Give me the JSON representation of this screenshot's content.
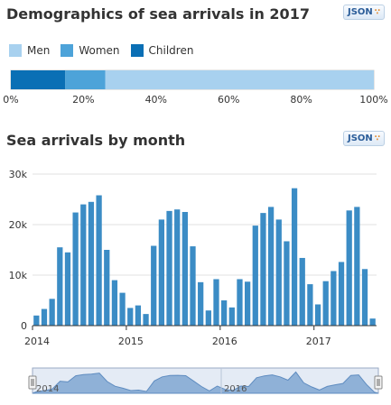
{
  "section1": {
    "title": "Demographics of sea arrivals in 2017",
    "json_label": "JSON"
  },
  "section2": {
    "title": "Sea arrivals by month",
    "json_label": "JSON"
  },
  "colors": {
    "men": "#a8d1ef",
    "women": "#4da3d9",
    "children": "#0a6fb5",
    "bar": "#3b8cc5",
    "navigator_fill": "#8fb1d7",
    "navigator_bg": "#e4ebf5"
  },
  "chart_data": [
    {
      "type": "bar",
      "orientation": "horizontal-stacked",
      "title": "Demographics of sea arrivals in 2017",
      "series": [
        {
          "name": "Children",
          "value": 15
        },
        {
          "name": "Women",
          "value": 11
        },
        {
          "name": "Men",
          "value": 74
        }
      ],
      "legend_order": [
        "Men",
        "Women",
        "Children"
      ],
      "xlim": [
        0,
        100
      ],
      "xticks": [
        "0%",
        "20%",
        "40%",
        "60%",
        "80%",
        "100%"
      ],
      "legend_position": "top-left"
    },
    {
      "type": "bar",
      "title": "Sea arrivals by month",
      "ylim": [
        0,
        30000
      ],
      "yticks": [
        0,
        10000,
        20000,
        30000
      ],
      "ytick_labels": [
        "0",
        "10k",
        "20k",
        "30k"
      ],
      "xticks": [
        "2014",
        "2015",
        "2016",
        "2017"
      ],
      "grid": true,
      "x": [
        "2014-01",
        "2014-02",
        "2014-03",
        "2014-04",
        "2014-05",
        "2014-06",
        "2014-07",
        "2014-08",
        "2014-09",
        "2014-10",
        "2014-11",
        "2014-12",
        "2015-01",
        "2015-02",
        "2015-03",
        "2015-04",
        "2015-05",
        "2015-06",
        "2015-07",
        "2015-08",
        "2015-09",
        "2015-10",
        "2015-11",
        "2015-12",
        "2016-01",
        "2016-02",
        "2016-03",
        "2016-04",
        "2016-05",
        "2016-06",
        "2016-07",
        "2016-08",
        "2016-09",
        "2016-10",
        "2016-11",
        "2016-12",
        "2017-01",
        "2017-02",
        "2017-03",
        "2017-04",
        "2017-05",
        "2017-06",
        "2017-07",
        "2017-08"
      ],
      "values": [
        2000,
        3300,
        5300,
        15500,
        14500,
        22400,
        24000,
        24500,
        25800,
        15000,
        9000,
        6500,
        3500,
        4000,
        2300,
        15800,
        21000,
        22700,
        23000,
        22500,
        15700,
        8600,
        3000,
        9200,
        5000,
        3600,
        9200,
        8700,
        19800,
        22300,
        23500,
        21000,
        16700,
        27200,
        13400,
        8200,
        4200,
        8800,
        10800,
        12600,
        22800,
        23500,
        11200,
        1400
      ],
      "navigator": {
        "labels": [
          "2014",
          "2016"
        ]
      }
    }
  ]
}
